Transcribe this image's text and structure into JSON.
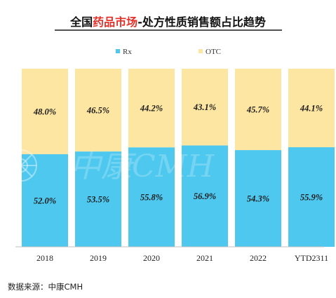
{
  "title": {
    "part1": "全国",
    "part2": "药品市场",
    "part3": "-处方性质销售额占比趋势",
    "accent_color": "#e4322b",
    "text_color": "#111111"
  },
  "watermark": "中康CMH",
  "source": "数据来源：中康CMH",
  "colors": {
    "rx": "#4fc8ef",
    "otc": "#fde6a2"
  },
  "chart_data": {
    "type": "bar",
    "stacked": true,
    "categories": [
      "2018",
      "2019",
      "2020",
      "2021",
      "2022",
      "YTD2311"
    ],
    "series": [
      {
        "name": "Rx",
        "values": [
          52.0,
          53.5,
          55.8,
          56.9,
          54.3,
          55.9
        ],
        "labels": [
          "52.0%",
          "53.5%",
          "55.8%",
          "56.9%",
          "54.3%",
          "55.9%"
        ]
      },
      {
        "name": "OTC",
        "values": [
          48.0,
          46.5,
          44.2,
          43.1,
          45.7,
          44.1
        ],
        "labels": [
          "48.0%",
          "46.5%",
          "44.2%",
          "43.1%",
          "45.7%",
          "44.1%"
        ]
      }
    ],
    "ylim": [
      0,
      100
    ],
    "legend_position": "top-center",
    "grid": false
  }
}
